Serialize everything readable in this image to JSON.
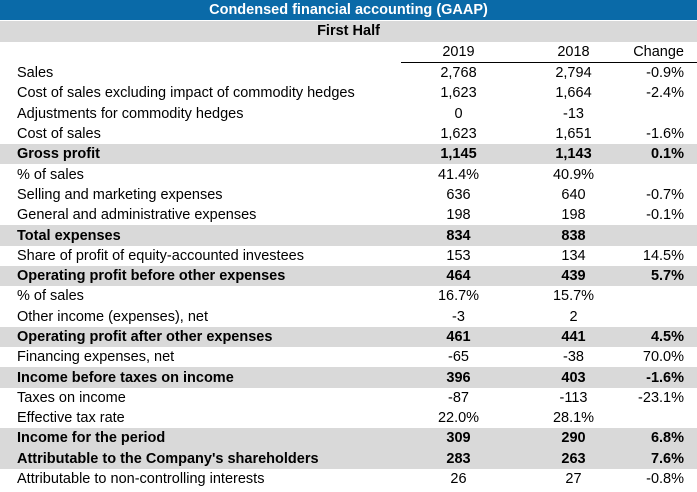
{
  "title": "Condensed financial accounting (GAAP)",
  "subtitle": "First Half",
  "columns": {
    "y2019": "2019",
    "y2018": "2018",
    "change": "Change"
  },
  "rows": [
    {
      "label": "Sales",
      "y2019": "2,768",
      "y2018": "2,794",
      "change": "-0.9%",
      "bold": false
    },
    {
      "label": "Cost of sales excluding impact of commodity hedges",
      "y2019": "1,623",
      "y2018": "1,664",
      "change": "-2.4%",
      "bold": false
    },
    {
      "label": "Adjustments for commodity hedges",
      "y2019": "0",
      "y2018": "-13",
      "change": "",
      "bold": false
    },
    {
      "label": "Cost of sales",
      "y2019": "1,623",
      "y2018": "1,651",
      "change": "-1.6%",
      "bold": false
    },
    {
      "label": "Gross profit",
      "y2019": "1,145",
      "y2018": "1,143",
      "change": "0.1%",
      "bold": true
    },
    {
      "label": "% of sales",
      "y2019": "41.4%",
      "y2018": "40.9%",
      "change": "",
      "bold": false
    },
    {
      "label": "Selling and marketing expenses",
      "y2019": "636",
      "y2018": "640",
      "change": "-0.7%",
      "bold": false
    },
    {
      "label": "General and administrative expenses",
      "y2019": "198",
      "y2018": "198",
      "change": "-0.1%",
      "bold": false
    },
    {
      "label": "Total expenses",
      "y2019": "834",
      "y2018": "838",
      "change": "",
      "bold": true
    },
    {
      "label": "Share of profit of equity-accounted investees",
      "y2019": "153",
      "y2018": "134",
      "change": "14.5%",
      "bold": false
    },
    {
      "label": "Operating profit before other expenses",
      "y2019": "464",
      "y2018": "439",
      "change": "5.7%",
      "bold": true
    },
    {
      "label": "% of sales",
      "y2019": "16.7%",
      "y2018": "15.7%",
      "change": "",
      "bold": false
    },
    {
      "label": "Other income (expenses), net",
      "y2019": "-3",
      "y2018": "2",
      "change": "",
      "bold": false
    },
    {
      "label": "Operating profit after other expenses",
      "y2019": "461",
      "y2018": "441",
      "change": "4.5%",
      "bold": true
    },
    {
      "label": "Financing expenses, net",
      "y2019": "-65",
      "y2018": "-38",
      "change": "70.0%",
      "bold": false
    },
    {
      "label": "Income before taxes on income",
      "y2019": "396",
      "y2018": "403",
      "change": "-1.6%",
      "bold": true
    },
    {
      "label": "Taxes on income",
      "y2019": "-87",
      "y2018": "-113",
      "change": "-23.1%",
      "bold": false
    },
    {
      "label": "Effective tax rate",
      "y2019": "22.0%",
      "y2018": "28.1%",
      "change": "",
      "bold": false
    },
    {
      "label": "Income for the period",
      "y2019": "309",
      "y2018": "290",
      "change": "6.8%",
      "bold": true
    },
    {
      "label": "Attributable to the Company's shareholders",
      "y2019": "283",
      "y2018": "263",
      "change": "7.6%",
      "bold": true
    },
    {
      "label": "Attributable to non-controlling interests",
      "y2019": "26",
      "y2018": "27",
      "change": "-0.8%",
      "bold": false
    }
  ]
}
